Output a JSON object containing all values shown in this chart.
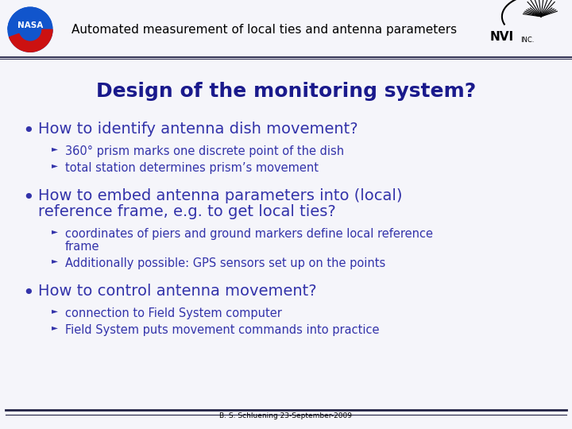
{
  "title": "Design of the monitoring system?",
  "title_color": "#1a1a8c",
  "title_fontsize": 18,
  "header_text": "Automated measurement of local ties and antenna parameters",
  "header_color": "#000000",
  "header_fontsize": 11,
  "footer_text": "B. S. Schluening 23-September-2009",
  "footer_color": "#000000",
  "footer_fontsize": 6.5,
  "bg_color": "#f5f5fa",
  "header_bg": "#e8e8f0",
  "bullet_color": "#3333aa",
  "sub_color": "#3333aa",
  "bullet_fontsize": 14,
  "sub_fontsize": 10.5,
  "bullets": [
    {
      "text": "How to identify antenna dish movement?",
      "subs": [
        "360° prism marks one discrete point of the dish",
        "total station determines prism’s movement"
      ]
    },
    {
      "text": "How to embed antenna parameters into (local)\nreference frame, e.g. to get local ties?",
      "subs": [
        "coordinates of piers and ground markers define local reference\nframe",
        "Additionally possible: GPS sensors set up on the points"
      ]
    },
    {
      "text": "How to control antenna movement?",
      "subs": [
        "connection to Field System computer",
        "Field System puts movement commands into practice"
      ]
    }
  ]
}
